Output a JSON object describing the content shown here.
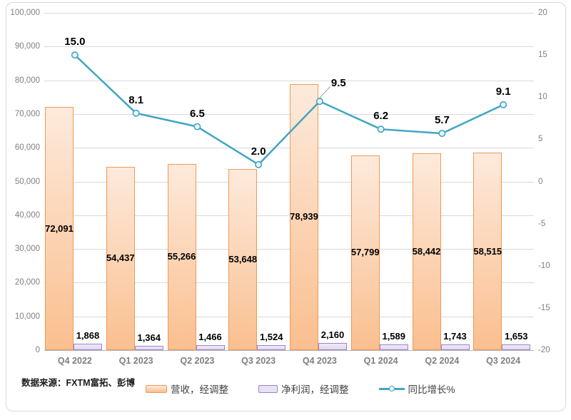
{
  "chart_data": {
    "type": "combo_bar_line",
    "title": "",
    "categories": [
      "Q4 2022",
      "Q1 2023",
      "Q2 2023",
      "Q3 2023",
      "Q4 2023",
      "Q1 2024",
      "Q2 2024",
      "Q3 2024"
    ],
    "series": [
      {
        "name": "营收，经调整",
        "type": "bar",
        "axis": "left",
        "values": [
          72091,
          54437,
          55266,
          53648,
          78939,
          57799,
          58442,
          58515
        ],
        "labels": [
          "72,091",
          "54,437",
          "55,266",
          "53,648",
          "78,939",
          "57,799",
          "58,442",
          "58,515"
        ]
      },
      {
        "name": "净利润，经调整",
        "type": "bar",
        "axis": "left",
        "values": [
          1868,
          1364,
          1466,
          1524,
          2160,
          1589,
          1743,
          1653
        ],
        "labels": [
          "1,868",
          "1,364",
          "1,466",
          "1,524",
          "2,160",
          "1,589",
          "1,743",
          "1,653"
        ]
      },
      {
        "name": "同比增长%",
        "type": "line",
        "axis": "right",
        "values": [
          15.0,
          8.1,
          6.5,
          2.0,
          9.5,
          6.2,
          5.7,
          9.1
        ],
        "labels": [
          "15.0",
          "8.1",
          "6.5",
          "2.0",
          "9.5",
          "6.2",
          "5.7",
          "9.1"
        ],
        "label_placement": [
          "above",
          "above",
          "above",
          "above",
          "callout-right",
          "above",
          "above",
          "above"
        ]
      }
    ],
    "left_axis": {
      "min": 0,
      "max": 100000,
      "step": 10000,
      "tick_labels_top_to_bottom": [
        "100,000",
        "90,000",
        "80,000",
        "70,000",
        "60,000",
        "50,000",
        "40,000",
        "30,000",
        "20,000",
        "10,000",
        "0"
      ]
    },
    "right_axis": {
      "min": -20,
      "max": 20,
      "step": 5,
      "tick_labels_top_to_bottom": [
        "20",
        "15",
        "10",
        "5",
        "0",
        "-5",
        "-10",
        "-15",
        "-20"
      ]
    },
    "grid": "horizontal",
    "legend_position": "bottom",
    "source_note": "数据来源：FXTM富拓、彭博",
    "colors": {
      "revenue_fill_top": "#FDEADC",
      "revenue_fill_bottom": "#FABF8F",
      "revenue_border": "#EE9A55",
      "profit_fill": "#E9E1F4",
      "profit_border": "#9C84C6",
      "growth_line": "#41A5C4",
      "growth_marker_fill": "#EAF5FA",
      "gridline": "#D9D9D9",
      "axis_line": "#B3B3B3",
      "leader_line": "#9E9E9E",
      "tick_label": "#808080",
      "category_label": "#7F7F7F",
      "data_label": "#000000"
    }
  }
}
